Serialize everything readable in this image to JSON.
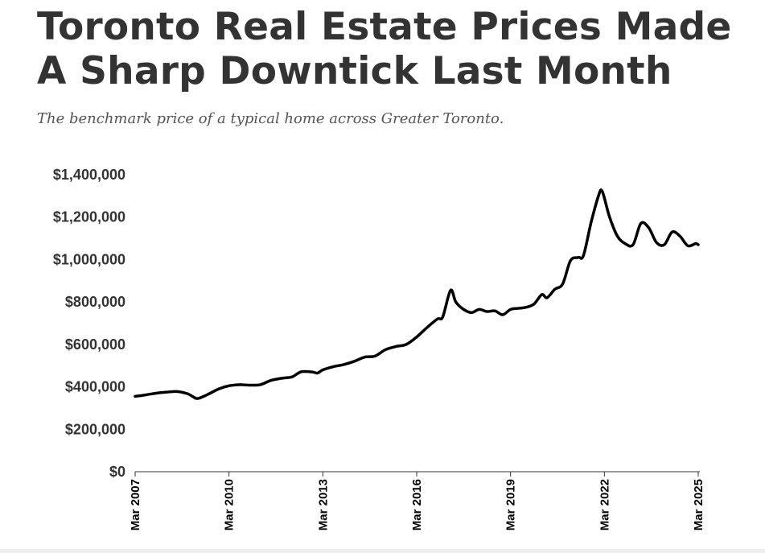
{
  "header": {
    "title": "Toronto Real Estate Prices Made A Sharp Downtick Last Month",
    "subtitle": "The benchmark price of a typical home across Greater Toronto."
  },
  "colors": {
    "line": "#000000",
    "title": "#333333",
    "subtitle": "#555555",
    "axis": "#333333"
  },
  "chart_data": {
    "type": "line",
    "title": "Toronto Real Estate Prices Made A Sharp Downtick Last Month",
    "subtitle": "The benchmark price of a typical home across Greater Toronto.",
    "xlabel": "",
    "ylabel": "",
    "ylim": [
      0,
      1400000
    ],
    "xlim": [
      "2007-03",
      "2025-03"
    ],
    "grid": false,
    "y_ticks": [
      0,
      200000,
      400000,
      600000,
      800000,
      1000000,
      1200000,
      1400000
    ],
    "y_tick_labels": [
      "$0",
      "$200,000",
      "$400,000",
      "$600,000",
      "$800,000",
      "$1,000,000",
      "$1,200,000",
      "$1,400,000"
    ],
    "x_tick_labels": [
      "Mar 2007",
      "Mar 2010",
      "Mar 2013",
      "Mar 2016",
      "Mar 2019",
      "Mar 2022",
      "Mar 2025"
    ],
    "x_ticks": [
      "2007-03",
      "2010-03",
      "2013-03",
      "2016-03",
      "2019-03",
      "2022-03",
      "2025-03"
    ],
    "series": [
      {
        "x": [
          "2007-03",
          "2007-07",
          "2007-11",
          "2008-03",
          "2008-07",
          "2008-11",
          "2009-01",
          "2009-03",
          "2009-07",
          "2009-11",
          "2010-03",
          "2010-07",
          "2010-11",
          "2011-03",
          "2011-07",
          "2011-11",
          "2012-03",
          "2012-05",
          "2012-07",
          "2012-11",
          "2013-01",
          "2013-03",
          "2013-07",
          "2013-11",
          "2014-03",
          "2014-07",
          "2014-11",
          "2015-03",
          "2015-07",
          "2015-11",
          "2016-03",
          "2016-07",
          "2016-11",
          "2017-01",
          "2017-04",
          "2017-06",
          "2017-09",
          "2017-12",
          "2018-03",
          "2018-06",
          "2018-09",
          "2018-12",
          "2019-03",
          "2019-06",
          "2019-09",
          "2019-12",
          "2020-03",
          "2020-05",
          "2020-08",
          "2020-11",
          "2021-02",
          "2021-05",
          "2021-07",
          "2021-10",
          "2022-01",
          "2022-02",
          "2022-03",
          "2022-05",
          "2022-08",
          "2022-11",
          "2023-02",
          "2023-05",
          "2023-08",
          "2023-11",
          "2024-02",
          "2024-05",
          "2024-08",
          "2024-11",
          "2025-02",
          "2025-03"
        ],
        "values": [
          355000,
          362000,
          370000,
          375000,
          378000,
          368000,
          355000,
          345000,
          365000,
          390000,
          405000,
          410000,
          408000,
          410000,
          430000,
          440000,
          446000,
          460000,
          472000,
          470000,
          465000,
          480000,
          495000,
          505000,
          520000,
          540000,
          545000,
          575000,
          590000,
          600000,
          635000,
          680000,
          720000,
          730000,
          855000,
          800000,
          765000,
          750000,
          765000,
          755000,
          758000,
          740000,
          765000,
          770000,
          775000,
          790000,
          835000,
          820000,
          860000,
          885000,
          995000,
          1010000,
          1020000,
          1180000,
          1310000,
          1325000,
          1290000,
          1200000,
          1110000,
          1075000,
          1070000,
          1170000,
          1150000,
          1080000,
          1070000,
          1130000,
          1110000,
          1065000,
          1075000,
          1070000
        ]
      }
    ]
  }
}
